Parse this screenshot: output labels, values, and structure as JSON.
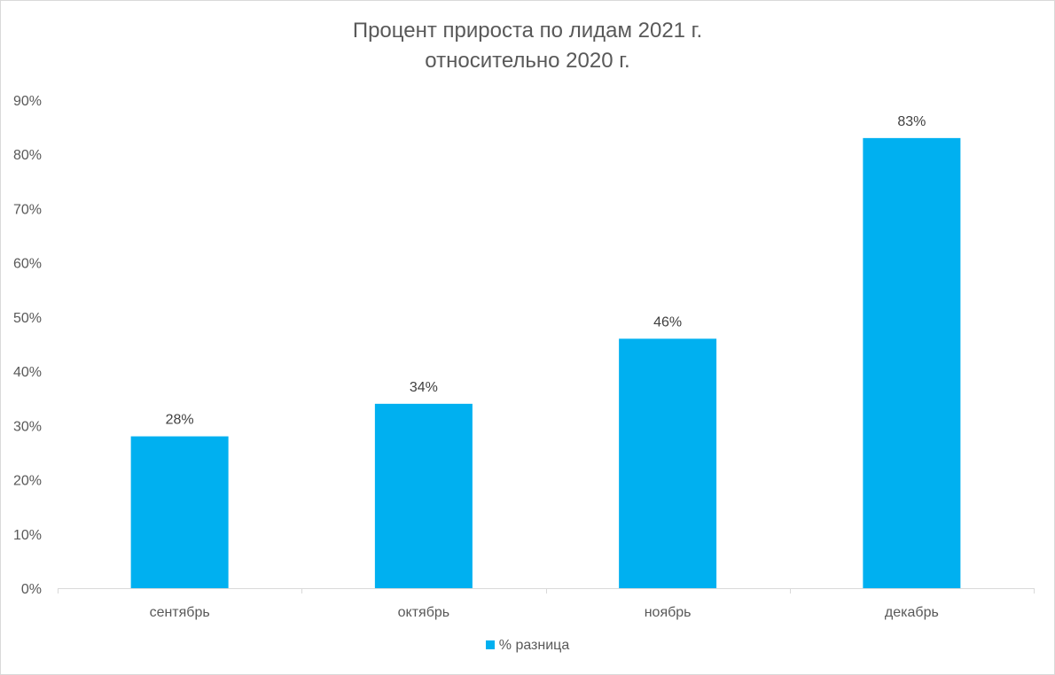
{
  "chart_data": {
    "type": "bar",
    "title_line1": "Процент прироста по лидам 2021 г.",
    "title_line2": "относительно 2020 г.",
    "xlabel": "",
    "ylabel": "",
    "categories": [
      "сентябрь",
      "октябрь",
      "ноябрь",
      "декабрь"
    ],
    "series": [
      {
        "name": "% разница",
        "values": [
          28,
          34,
          46,
          83
        ],
        "labels": [
          "28%",
          "34%",
          "46%",
          "83%"
        ],
        "color": "#00b0f0"
      }
    ],
    "ylim": [
      0,
      90
    ],
    "yticks": [
      0,
      10,
      20,
      30,
      40,
      50,
      60,
      70,
      80,
      90
    ],
    "ytick_labels": [
      "0%",
      "10%",
      "20%",
      "30%",
      "40%",
      "50%",
      "60%",
      "70%",
      "80%",
      "90%"
    ],
    "grid": false,
    "legend_position": "bottom"
  }
}
